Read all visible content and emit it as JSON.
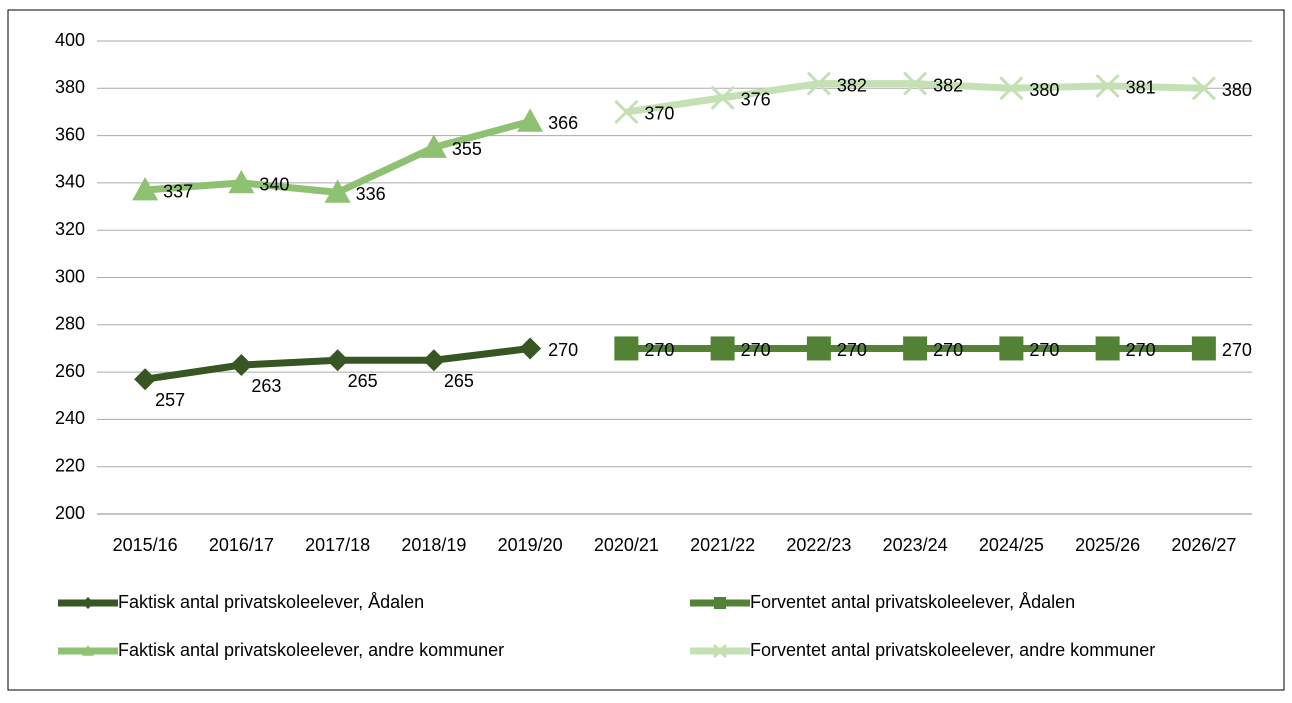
{
  "chart_data": {
    "type": "line",
    "categories": [
      "2015/16",
      "2016/17",
      "2017/18",
      "2018/19",
      "2019/20",
      "2020/21",
      "2021/22",
      "2022/23",
      "2023/24",
      "2024/25",
      "2025/26",
      "2026/27"
    ],
    "series": [
      {
        "name": "Faktisk antal privatskoleelever, Ådalen",
        "color": "#375623",
        "marker": "diamond",
        "values": [
          257,
          263,
          265,
          265,
          270,
          null,
          null,
          null,
          null,
          null,
          null,
          null
        ]
      },
      {
        "name": "Forventet antal privatskoleelever, Ådalen",
        "color": "#548235",
        "marker": "square",
        "values": [
          null,
          null,
          null,
          null,
          null,
          270,
          270,
          270,
          270,
          270,
          270,
          270
        ]
      },
      {
        "name": "Faktisk antal privatskoleelever, andre kommuner",
        "color": "#8fc172",
        "marker": "triangle",
        "values": [
          337,
          340,
          336,
          355,
          366,
          null,
          null,
          null,
          null,
          null,
          null,
          null
        ]
      },
      {
        "name": "Forventet antal privatskoleelever, andre kommuner",
        "color": "#c5e0b4",
        "marker": "x",
        "values": [
          null,
          null,
          null,
          null,
          null,
          370,
          376,
          382,
          382,
          380,
          381,
          380
        ]
      }
    ],
    "ylim": [
      200,
      400
    ],
    "yticks": [
      200,
      220,
      240,
      260,
      280,
      300,
      320,
      340,
      360,
      380,
      400
    ],
    "grid": true,
    "legend": "bottom"
  }
}
